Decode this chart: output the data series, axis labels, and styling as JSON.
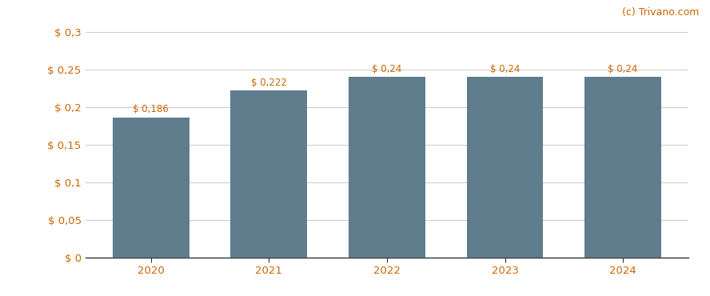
{
  "categories": [
    "2020",
    "2021",
    "2022",
    "2023",
    "2024"
  ],
  "values": [
    0.186,
    0.222,
    0.24,
    0.24,
    0.24
  ],
  "labels": [
    "$ 0,186",
    "$ 0,222",
    "$ 0,24",
    "$ 0,24",
    "$ 0,24"
  ],
  "bar_color": "#5f7d8c",
  "background_color": "#ffffff",
  "ylim": [
    0,
    0.315
  ],
  "yticks": [
    0.0,
    0.05,
    0.1,
    0.15,
    0.2,
    0.25,
    0.3
  ],
  "ytick_labels": [
    "$ 0",
    "$ 0,05",
    "$ 0,1",
    "$ 0,15",
    "$ 0,2",
    "$ 0,25",
    "$ 0,3"
  ],
  "watermark": "(c) Trivano.com",
  "accent_color": "#cc6600",
  "grid_color": "#cccccc",
  "bar_width": 0.65,
  "label_fontsize": 8.5,
  "tick_fontsize": 9.5
}
